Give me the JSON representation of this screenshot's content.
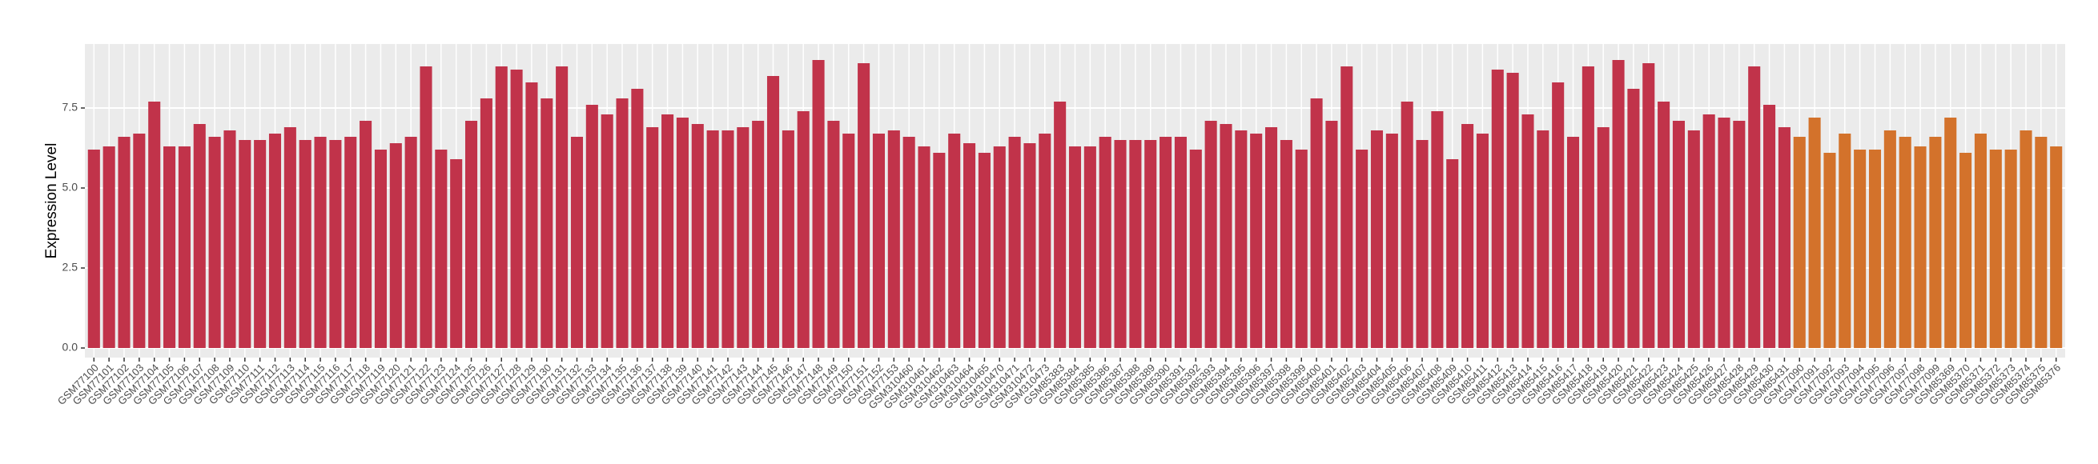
{
  "chart_data": {
    "type": "bar",
    "y_label": "Expression Level",
    "ylim": [
      -0.3,
      9.5
    ],
    "yticks": [
      {
        "value": 0,
        "label": "0.0"
      },
      2.5,
      {
        "value": 5,
        "label": "5.0"
      },
      7.5
    ],
    "grid": true,
    "categories": [
      "GSM77100",
      "GSM77101",
      "GSM77102",
      "GSM77103",
      "GSM77104",
      "GSM77105",
      "GSM77106",
      "GSM77107",
      "GSM77108",
      "GSM77109",
      "GSM77110",
      "GSM77111",
      "GSM77112",
      "GSM77113",
      "GSM77114",
      "GSM77115",
      "GSM77116",
      "GSM77117",
      "GSM77118",
      "GSM77119",
      "GSM77120",
      "GSM77121",
      "GSM77122",
      "GSM77123",
      "GSM77124",
      "GSM77125",
      "GSM77126",
      "GSM77127",
      "GSM77128",
      "GSM77129",
      "GSM77130",
      "GSM77131",
      "GSM77132",
      "GSM77133",
      "GSM77134",
      "GSM77135",
      "GSM77136",
      "GSM77137",
      "GSM77138",
      "GSM77139",
      "GSM77140",
      "GSM77141",
      "GSM77142",
      "GSM77143",
      "GSM77144",
      "GSM77145",
      "GSM77146",
      "GSM77147",
      "GSM77148",
      "GSM77149",
      "GSM77150",
      "GSM77151",
      "GSM77152",
      "GSM77153",
      "GSM310460",
      "GSM310461",
      "GSM310462",
      "GSM310463",
      "GSM310464",
      "GSM310465",
      "GSM310470",
      "GSM310471",
      "GSM310472",
      "GSM310473",
      "GSM85383",
      "GSM85384",
      "GSM85385",
      "GSM85386",
      "GSM85387",
      "GSM85388",
      "GSM85389",
      "GSM85390",
      "GSM85391",
      "GSM85392",
      "GSM85393",
      "GSM85394",
      "GSM85395",
      "GSM85396",
      "GSM85397",
      "GSM85398",
      "GSM85399",
      "GSM85400",
      "GSM85401",
      "GSM85402",
      "GSM85403",
      "GSM85404",
      "GSM85405",
      "GSM85406",
      "GSM85407",
      "GSM85408",
      "GSM85409",
      "GSM85410",
      "GSM85411",
      "GSM85412",
      "GSM85413",
      "GSM85414",
      "GSM85415",
      "GSM85416",
      "GSM85417",
      "GSM85418",
      "GSM85419",
      "GSM85420",
      "GSM85421",
      "GSM85422",
      "GSM85423",
      "GSM85424",
      "GSM85425",
      "GSM85426",
      "GSM85427",
      "GSM85428",
      "GSM85429",
      "GSM85430",
      "GSM85431",
      "GSM77090",
      "GSM77091",
      "GSM77092",
      "GSM77093",
      "GSM77094",
      "GSM77095",
      "GSM77096",
      "GSM77097",
      "GSM77098",
      "GSM77099",
      "GSM85369",
      "GSM85370",
      "GSM85371",
      "GSM85372",
      "GSM85373",
      "GSM85374",
      "GSM85375",
      "GSM85376"
    ],
    "values": [
      6.2,
      6.3,
      6.6,
      6.7,
      7.7,
      6.3,
      6.3,
      7.0,
      6.6,
      6.8,
      6.5,
      6.5,
      6.7,
      6.9,
      6.5,
      6.6,
      6.5,
      6.6,
      7.1,
      6.2,
      6.4,
      6.6,
      8.8,
      6.2,
      5.9,
      7.1,
      7.8,
      8.8,
      8.7,
      8.3,
      7.8,
      8.8,
      6.6,
      7.6,
      7.3,
      7.8,
      8.1,
      6.9,
      7.3,
      7.2,
      7.0,
      6.8,
      6.8,
      6.9,
      7.1,
      8.5,
      6.8,
      7.4,
      9.0,
      7.1,
      6.7,
      8.9,
      6.7,
      6.8,
      6.6,
      6.3,
      6.1,
      6.7,
      6.4,
      6.1,
      6.3,
      6.6,
      6.4,
      6.7,
      7.7,
      6.3,
      6.3,
      6.6,
      6.5,
      6.5,
      6.5,
      6.6,
      6.6,
      6.2,
      7.1,
      7.0,
      6.8,
      6.7,
      6.9,
      6.5,
      6.2,
      7.8,
      7.1,
      8.8,
      6.2,
      6.8,
      6.7,
      7.7,
      6.5,
      7.4,
      5.9,
      7.0,
      6.7,
      8.7,
      8.6,
      7.3,
      6.8,
      8.3,
      6.6,
      8.8,
      6.9,
      9.0,
      8.1,
      8.9,
      7.7,
      7.1,
      6.8,
      7.3,
      7.2,
      7.1,
      8.8,
      7.6,
      6.9,
      6.6,
      7.2,
      6.1,
      6.7,
      6.2,
      6.2,
      6.8,
      6.6,
      6.3,
      6.6,
      7.2,
      6.1,
      6.7,
      6.2,
      6.2,
      6.8,
      6.6,
      6.3
    ],
    "colors": [
      "#c1334a",
      "#c1334a",
      "#c1334a",
      "#c1334a",
      "#c1334a",
      "#c1334a",
      "#c1334a",
      "#c1334a",
      "#c1334a",
      "#c1334a",
      "#c1334a",
      "#c1334a",
      "#c1334a",
      "#c1334a",
      "#c1334a",
      "#c1334a",
      "#c1334a",
      "#c1334a",
      "#c1334a",
      "#c1334a",
      "#c1334a",
      "#c1334a",
      "#c1334a",
      "#c1334a",
      "#c1334a",
      "#c1334a",
      "#c1334a",
      "#c1334a",
      "#c1334a",
      "#c1334a",
      "#c1334a",
      "#c1334a",
      "#c1334a",
      "#c1334a",
      "#c1334a",
      "#c1334a",
      "#c1334a",
      "#c1334a",
      "#c1334a",
      "#c1334a",
      "#c1334a",
      "#c1334a",
      "#c1334a",
      "#c1334a",
      "#c1334a",
      "#c1334a",
      "#c1334a",
      "#c1334a",
      "#c1334a",
      "#c1334a",
      "#c1334a",
      "#c1334a",
      "#c1334a",
      "#c1334a",
      "#c1334a",
      "#c1334a",
      "#c1334a",
      "#c1334a",
      "#c1334a",
      "#c1334a",
      "#c1334a",
      "#c1334a",
      "#c1334a",
      "#c1334a",
      "#c1334a",
      "#c1334a",
      "#c1334a",
      "#c1334a",
      "#c1334a",
      "#c1334a",
      "#c1334a",
      "#c1334a",
      "#c1334a",
      "#c1334a",
      "#c1334a",
      "#c1334a",
      "#c1334a",
      "#c1334a",
      "#c1334a",
      "#c1334a",
      "#c1334a",
      "#c1334a",
      "#c1334a",
      "#c1334a",
      "#c1334a",
      "#c1334a",
      "#c1334a",
      "#c1334a",
      "#c1334a",
      "#c1334a",
      "#c1334a",
      "#c1334a",
      "#c1334a",
      "#c1334a",
      "#c1334a",
      "#c1334a",
      "#c1334a",
      "#c1334a",
      "#c1334a",
      "#c1334a",
      "#c1334a",
      "#c1334a",
      "#c1334a",
      "#c1334a",
      "#c1334a",
      "#c1334a",
      "#c1334a",
      "#c1334a",
      "#c1334a",
      "#c1334a",
      "#c1334a",
      "#c1334a",
      "#c1334a",
      "#d3722b",
      "#d3722b",
      "#d3722b",
      "#d3722b",
      "#d3722b",
      "#d3722b",
      "#d3722b",
      "#d3722b",
      "#d3722b",
      "#d3722b",
      "#d3722b",
      "#d3722b",
      "#d3722b",
      "#d3722b",
      "#d3722b",
      "#d3722b",
      "#d3722b",
      "#d3722b"
    ]
  }
}
